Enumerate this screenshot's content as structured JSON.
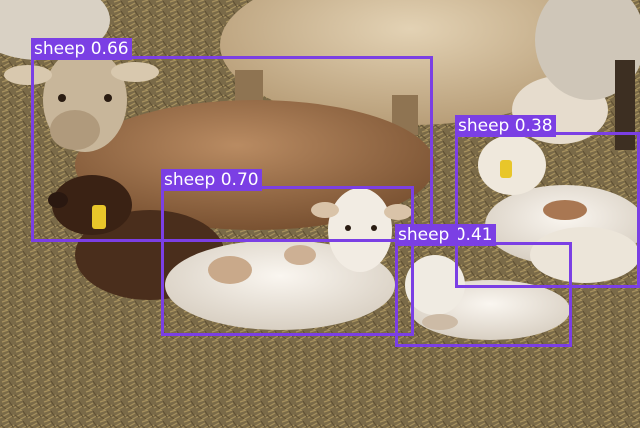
{
  "image": {
    "description_icon": "sheep-photo",
    "palette": {
      "ground": "#7a6a48",
      "straw": "#a08a5a",
      "wool_light": "#e9e2d6",
      "wool_tan": "#c9b08c",
      "wool_brown": "#7a4f2e",
      "wool_dark": "#3a2214",
      "tag": "#e8c62a"
    }
  },
  "detection_style": {
    "box_color": "#7b3fe4",
    "label_text_color": "#ffffff"
  },
  "detections": [
    {
      "class": "sheep",
      "score": "0.66",
      "label": "sheep 0.66"
    },
    {
      "class": "sheep",
      "score": "0.70",
      "label": "sheep 0.70"
    },
    {
      "class": "sheep",
      "score": "0.41",
      "label": "sheep 0.41"
    },
    {
      "class": "sheep",
      "score": "0.38",
      "label": "sheep 0.38"
    }
  ]
}
